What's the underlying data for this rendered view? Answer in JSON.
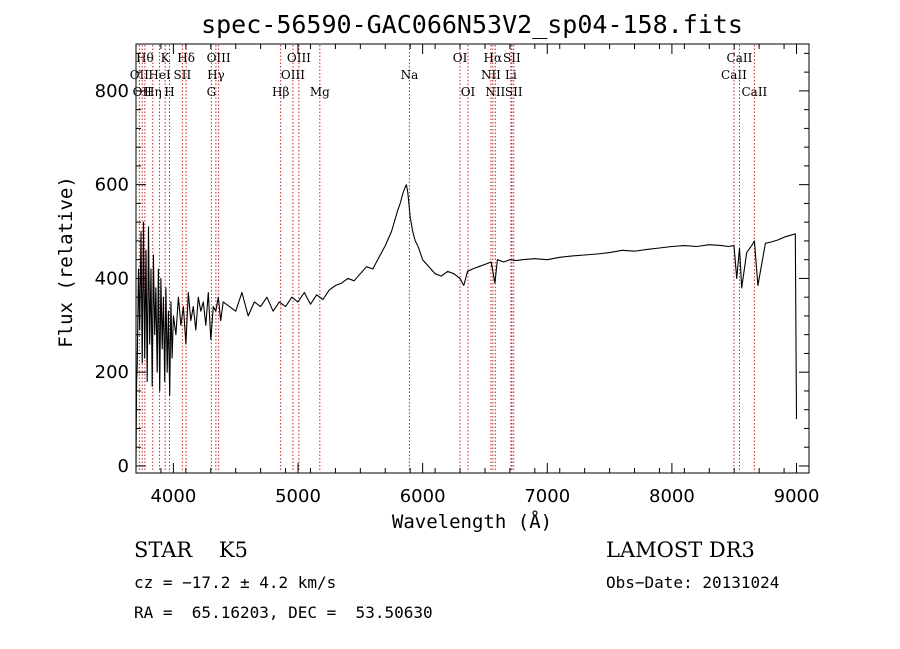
{
  "chart_data": {
    "type": "line",
    "title": "spec-56590-GAC066N53V2_sp04-158.fits",
    "xlabel": "Wavelength (Å)",
    "ylabel": "Flux (relative)",
    "xlim": [
      3700,
      9100
    ],
    "ylim": [
      -15,
      900
    ],
    "x_ticks": [
      4000,
      5000,
      6000,
      7000,
      8000,
      9000
    ],
    "x_tick_labels": [
      "4000",
      "5000",
      "6000",
      "7000",
      "8000",
      "9000"
    ],
    "y_ticks": [
      0,
      200,
      400,
      600,
      800
    ],
    "y_tick_labels": [
      "0",
      "200",
      "400",
      "600",
      "800"
    ],
    "line_color": "#000000",
    "marker_color": "#cc2222",
    "series": [
      {
        "name": "flux",
        "x": [
          3700,
          3705,
          3710,
          3720,
          3730,
          3740,
          3750,
          3760,
          3770,
          3780,
          3790,
          3800,
          3810,
          3820,
          3830,
          3840,
          3850,
          3860,
          3870,
          3880,
          3890,
          3900,
          3910,
          3920,
          3930,
          3940,
          3950,
          3960,
          3970,
          3980,
          3990,
          4000,
          4020,
          4040,
          4060,
          4080,
          4100,
          4120,
          4140,
          4160,
          4180,
          4200,
          4220,
          4240,
          4260,
          4280,
          4300,
          4320,
          4340,
          4360,
          4380,
          4400,
          4450,
          4500,
          4550,
          4600,
          4650,
          4700,
          4750,
          4800,
          4850,
          4900,
          4950,
          5000,
          5050,
          5100,
          5150,
          5200,
          5250,
          5300,
          5350,
          5400,
          5450,
          5500,
          5550,
          5600,
          5650,
          5700,
          5750,
          5800,
          5820,
          5840,
          5860,
          5870,
          5880,
          5890,
          5900,
          5920,
          5940,
          5960,
          5980,
          6000,
          6050,
          6100,
          6150,
          6200,
          6250,
          6300,
          6330,
          6360,
          6400,
          6450,
          6500,
          6550,
          6580,
          6600,
          6650,
          6700,
          6750,
          6800,
          6900,
          7000,
          7100,
          7200,
          7300,
          7400,
          7500,
          7600,
          7700,
          7800,
          7900,
          8000,
          8100,
          8200,
          8300,
          8400,
          8450,
          8498,
          8520,
          8542,
          8560,
          8600,
          8640,
          8662,
          8690,
          8750,
          8800,
          8850,
          8900,
          8950,
          8990,
          9000
        ],
        "values": [
          0,
          180,
          210,
          420,
          290,
          500,
          220,
          520,
          230,
          460,
          180,
          510,
          260,
          420,
          170,
          450,
          280,
          380,
          200,
          420,
          160,
          400,
          250,
          360,
          180,
          380,
          200,
          330,
          150,
          350,
          230,
          320,
          280,
          360,
          300,
          340,
          260,
          370,
          310,
          340,
          290,
          360,
          330,
          350,
          300,
          370,
          270,
          340,
          330,
          360,
          310,
          350,
          340,
          330,
          370,
          320,
          350,
          340,
          360,
          330,
          350,
          340,
          360,
          350,
          370,
          345,
          365,
          355,
          375,
          385,
          390,
          400,
          395,
          410,
          425,
          420,
          445,
          470,
          500,
          545,
          560,
          580,
          595,
          600,
          585,
          560,
          530,
          500,
          480,
          470,
          455,
          440,
          425,
          410,
          405,
          415,
          410,
          400,
          385,
          415,
          420,
          425,
          430,
          435,
          390,
          440,
          435,
          440,
          438,
          440,
          442,
          440,
          445,
          448,
          450,
          452,
          455,
          460,
          458,
          462,
          465,
          468,
          470,
          468,
          472,
          470,
          468,
          470,
          400,
          465,
          380,
          455,
          470,
          480,
          385,
          475,
          478,
          482,
          488,
          492,
          495,
          100
        ]
      }
    ],
    "line_markers": [
      {
        "x": 3727,
        "label": "OII",
        "row": 2
      },
      {
        "x": 3750,
        "label": "OII",
        "row": 3
      },
      {
        "x": 3771,
        "label": "Hθ",
        "row": 1
      },
      {
        "x": 3835,
        "label": "Hη",
        "row": 3
      },
      {
        "x": 3889,
        "label": "HeI",
        "row": 2
      },
      {
        "x": 3934,
        "label": "K",
        "row": 1
      },
      {
        "x": 3969,
        "label": "H",
        "row": 3
      },
      {
        "x": 4072,
        "label": "SII",
        "row": 2
      },
      {
        "x": 4102,
        "label": "Hδ",
        "row": 1
      },
      {
        "x": 4305,
        "label": "G",
        "row": 3
      },
      {
        "x": 4341,
        "label": "Hγ",
        "row": 2
      },
      {
        "x": 4363,
        "label": "OIII",
        "row": 1
      },
      {
        "x": 4861,
        "label": "Hβ",
        "row": 3
      },
      {
        "x": 4959,
        "label": "OIII",
        "row": 2
      },
      {
        "x": 5007,
        "label": "OIII",
        "row": 1
      },
      {
        "x": 5175,
        "label": "Mg",
        "row": 3
      },
      {
        "x": 5894,
        "label": "Na",
        "row": 2
      },
      {
        "x": 6300,
        "label": "OI",
        "row": 1
      },
      {
        "x": 6364,
        "label": "OI",
        "row": 3
      },
      {
        "x": 6548,
        "label": "NII",
        "row": 2
      },
      {
        "x": 6563,
        "label": "Hα",
        "row": 1
      },
      {
        "x": 6583,
        "label": "NII",
        "row": 3
      },
      {
        "x": 6708,
        "label": "Li",
        "row": 2
      },
      {
        "x": 6716,
        "label": "SII",
        "row": 1
      },
      {
        "x": 6731,
        "label": "SII",
        "row": 3
      },
      {
        "x": 8498,
        "label": "CaII",
        "row": 2
      },
      {
        "x": 8542,
        "label": "CaII",
        "row": 1
      },
      {
        "x": 8662,
        "label": "CaII",
        "row": 3
      }
    ]
  },
  "info": {
    "class_line": "STAR    K5",
    "survey": "LAMOST DR3",
    "cz_line": "cz = −17.2 ± 4.2 km/s",
    "obs_date_line": "Obs−Date: 20131024",
    "radec_line": "RA =  65.16203, DEC =  53.50630"
  }
}
